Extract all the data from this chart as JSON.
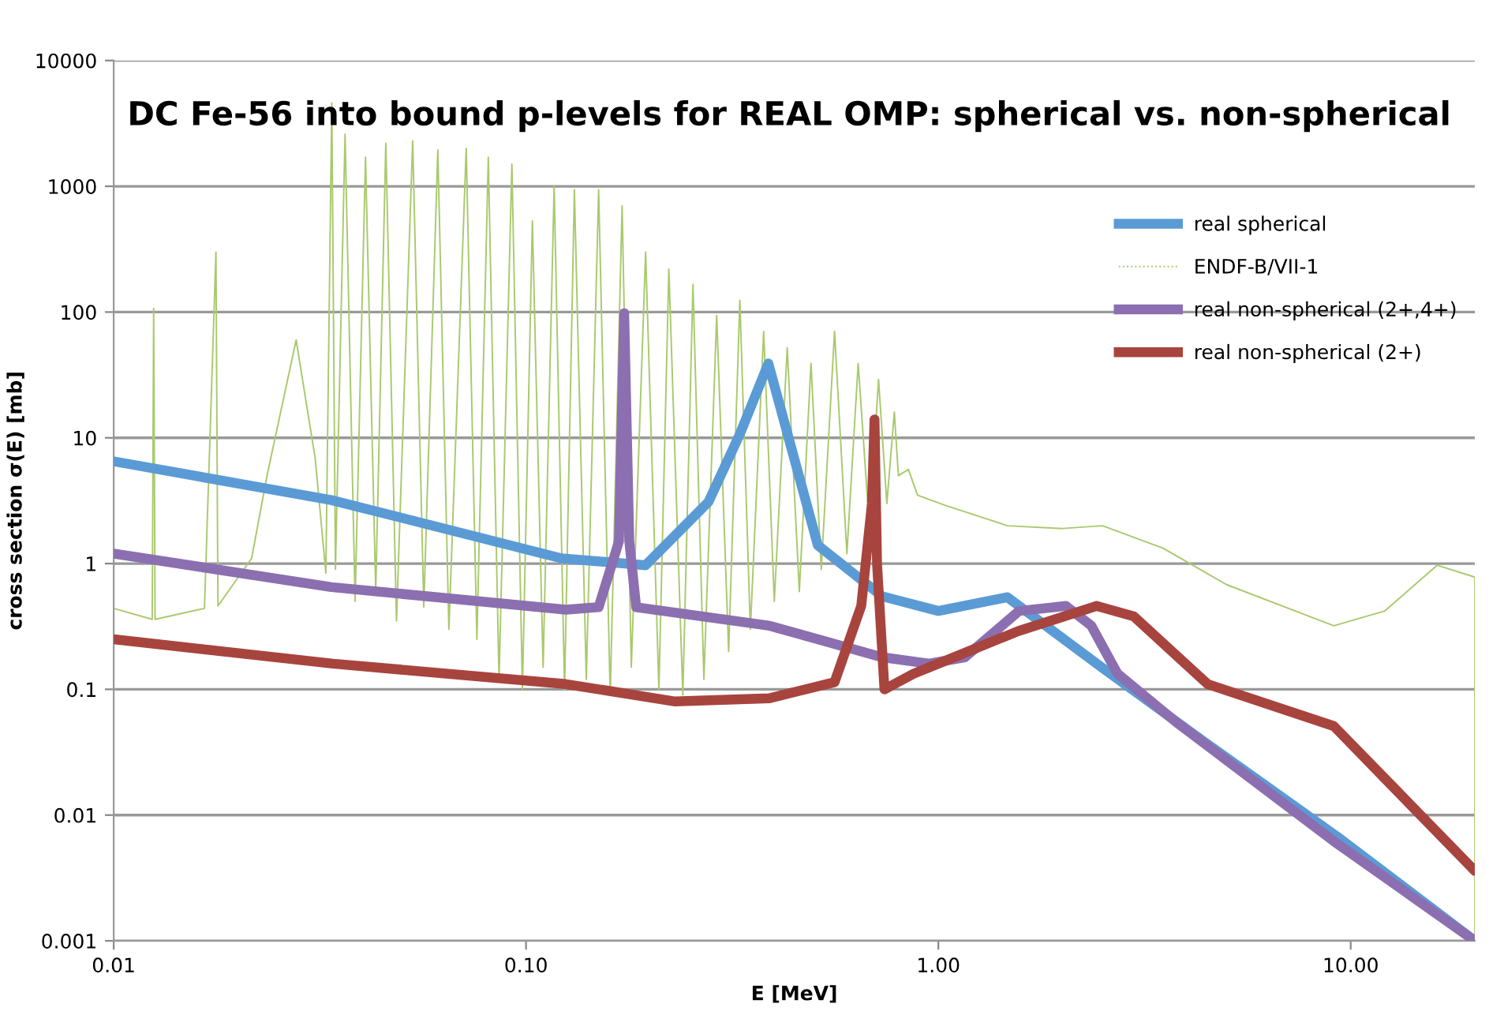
{
  "chart_data": {
    "type": "line",
    "title": "DC Fe-56 into bound p-levels for REAL OMP: spherical vs. non-spherical",
    "xlabel": "E [MeV]",
    "ylabel": "cross section σ(E) [mb]",
    "log": "xy",
    "grid": "y",
    "legend": "right",
    "marker": "none",
    "line_style": "solid",
    "xlim": [
      0.01,
      20
    ],
    "xticks": [
      0.01,
      {
        "value": 0.1,
        "label": "0.10"
      },
      {
        "value": 1,
        "label": "1.00"
      },
      {
        "value": 10,
        "label": "10.00"
      }
    ],
    "ylim": [
      0.001,
      10000
    ],
    "yticks": [
      0.001,
      0.01,
      0.1,
      1,
      10,
      100,
      1000,
      10000
    ],
    "series": [
      {
        "name": "real spherical",
        "color": "#5b9bd5",
        "x": [
          0.01,
          0.0337,
          0.122,
          0.195,
          0.277,
          0.33,
          0.387,
          0.51,
          0.73,
          1.0,
          1.47,
          2.5,
          4.2,
          9.3,
          20
        ],
        "values": [
          6.5,
          3.2,
          1.1,
          0.97,
          3.1,
          10.7,
          39,
          1.4,
          0.55,
          0.42,
          0.54,
          0.148,
          0.043,
          0.0067,
          0.001
        ]
      },
      {
        "name": "ENDF-B/VII-1",
        "color": "#a9c96d",
        "x": [
          0.01,
          0.0124,
          0.0125,
          0.0126,
          0.0166,
          0.0177,
          0.0179,
          0.0216,
          0.0236,
          0.0277,
          0.0308,
          0.0327,
          0.0338,
          0.0345,
          0.0364,
          0.0385,
          0.0408,
          0.0432,
          0.0457,
          0.0485,
          0.0531,
          0.0565,
          0.0611,
          0.065,
          0.0716,
          0.076,
          0.081,
          0.086,
          0.0924,
          0.098,
          0.1036,
          0.11,
          0.117,
          0.124,
          0.131,
          0.14,
          0.15,
          0.16,
          0.171,
          0.18,
          0.195,
          0.21,
          0.222,
          0.24,
          0.254,
          0.27,
          0.29,
          0.31,
          0.33,
          0.35,
          0.377,
          0.4,
          0.43,
          0.46,
          0.491,
          0.52,
          0.56,
          0.6,
          0.639,
          0.68,
          0.716,
          0.75,
          0.782,
          0.8,
          0.846,
          0.89,
          1.04,
          1.47,
          2.0,
          2.5,
          3.5,
          5.0,
          9.1,
          12.1,
          16.2,
          20,
          20
        ],
        "values": [
          0.44,
          0.36,
          107,
          0.36,
          0.44,
          300,
          0.46,
          1.1,
          5.2,
          60,
          6.9,
          0.84,
          4600,
          0.9,
          2600,
          0.5,
          1700,
          0.6,
          2200,
          0.35,
          2300,
          0.45,
          1950,
          0.3,
          2000,
          0.25,
          1700,
          0.12,
          1500,
          0.1,
          530,
          0.15,
          1000,
          0.1,
          940,
          0.12,
          940,
          0.09,
          700,
          0.15,
          300,
          0.1,
          220,
          0.09,
          166,
          0.12,
          94,
          0.2,
          124,
          0.3,
          70,
          0.5,
          52,
          0.6,
          39,
          0.9,
          70,
          1.2,
          39,
          2,
          29,
          3,
          16,
          5,
          5.6,
          3.5,
          2.9,
          2.0,
          1.9,
          2.0,
          1.33,
          0.68,
          0.32,
          0.42,
          0.97,
          0.78,
          0.001
        ]
      },
      {
        "name": "real non-spherical (2+,4+)",
        "color": "#8c6fb0",
        "x": [
          0.01,
          0.0337,
          0.125,
          0.15,
          0.168,
          0.173,
          0.178,
          0.185,
          0.39,
          0.73,
          0.95,
          1.16,
          1.57,
          2.04,
          2.35,
          2.72,
          3.77,
          9.1,
          20
        ],
        "values": [
          1.2,
          0.65,
          0.43,
          0.45,
          1.5,
          98,
          1.5,
          0.45,
          0.32,
          0.18,
          0.16,
          0.18,
          0.42,
          0.46,
          0.32,
          0.133,
          0.055,
          0.0062,
          0.001
        ]
      },
      {
        "name": "real non-spherical (2+)",
        "color": "#a8443e",
        "x": [
          0.01,
          0.034,
          0.125,
          0.23,
          0.39,
          0.56,
          0.65,
          0.69,
          0.7,
          0.71,
          0.74,
          0.87,
          1.0,
          1.56,
          2.42,
          2.98,
          4.5,
          9.1,
          20
        ],
        "values": [
          0.25,
          0.16,
          0.11,
          0.08,
          0.085,
          0.114,
          0.46,
          3,
          14,
          1,
          0.1,
          0.133,
          0.16,
          0.29,
          0.46,
          0.38,
          0.11,
          0.051,
          0.0036
        ]
      }
    ]
  }
}
